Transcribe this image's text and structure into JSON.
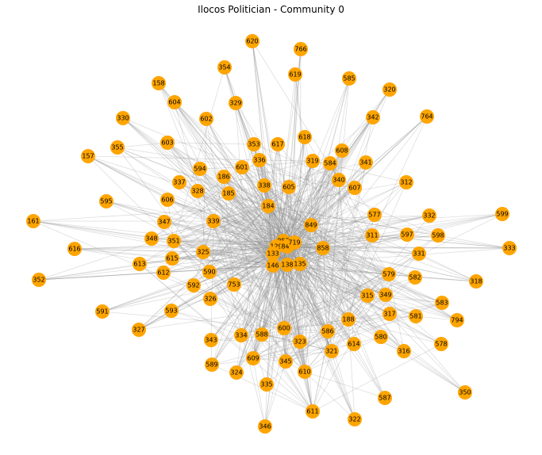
{
  "title": "Ilocos Politician - Community 0",
  "node_color": "#FFA500",
  "edge_color": "#888888",
  "nodes": [
    {
      "id": "620"
    },
    {
      "id": "766"
    },
    {
      "id": "354"
    },
    {
      "id": "619"
    },
    {
      "id": "585"
    },
    {
      "id": "158"
    },
    {
      "id": "320"
    },
    {
      "id": "604"
    },
    {
      "id": "329"
    },
    {
      "id": "330"
    },
    {
      "id": "602"
    },
    {
      "id": "342"
    },
    {
      "id": "764"
    },
    {
      "id": "618"
    },
    {
      "id": "603"
    },
    {
      "id": "353"
    },
    {
      "id": "617"
    },
    {
      "id": "608"
    },
    {
      "id": "355"
    },
    {
      "id": "157"
    },
    {
      "id": "336"
    },
    {
      "id": "319"
    },
    {
      "id": "584"
    },
    {
      "id": "341"
    },
    {
      "id": "594"
    },
    {
      "id": "601"
    },
    {
      "id": "186"
    },
    {
      "id": "340"
    },
    {
      "id": "337"
    },
    {
      "id": "338"
    },
    {
      "id": "605"
    },
    {
      "id": "607"
    },
    {
      "id": "312"
    },
    {
      "id": "328"
    },
    {
      "id": "185"
    },
    {
      "id": "595"
    },
    {
      "id": "606"
    },
    {
      "id": "184"
    },
    {
      "id": "577"
    },
    {
      "id": "332"
    },
    {
      "id": "599"
    },
    {
      "id": "161"
    },
    {
      "id": "347"
    },
    {
      "id": "339"
    },
    {
      "id": "849"
    },
    {
      "id": "311"
    },
    {
      "id": "597"
    },
    {
      "id": "598"
    },
    {
      "id": "348"
    },
    {
      "id": "351"
    },
    {
      "id": "857"
    },
    {
      "id": "129"
    },
    {
      "id": "848"
    },
    {
      "id": "719"
    },
    {
      "id": "858"
    },
    {
      "id": "333"
    },
    {
      "id": "616"
    },
    {
      "id": "325"
    },
    {
      "id": "331"
    },
    {
      "id": "615"
    },
    {
      "id": "133"
    },
    {
      "id": "613"
    },
    {
      "id": "138"
    },
    {
      "id": "135"
    },
    {
      "id": "146"
    },
    {
      "id": "612"
    },
    {
      "id": "590"
    },
    {
      "id": "352"
    },
    {
      "id": "579"
    },
    {
      "id": "582"
    },
    {
      "id": "318"
    },
    {
      "id": "753"
    },
    {
      "id": "592"
    },
    {
      "id": "315"
    },
    {
      "id": "349"
    },
    {
      "id": "326"
    },
    {
      "id": "583"
    },
    {
      "id": "591"
    },
    {
      "id": "593"
    },
    {
      "id": "317"
    },
    {
      "id": "581"
    },
    {
      "id": "794"
    },
    {
      "id": "188"
    },
    {
      "id": "327"
    },
    {
      "id": "600"
    },
    {
      "id": "586"
    },
    {
      "id": "334"
    },
    {
      "id": "588"
    },
    {
      "id": "580"
    },
    {
      "id": "343"
    },
    {
      "id": "323"
    },
    {
      "id": "614"
    },
    {
      "id": "578"
    },
    {
      "id": "321"
    },
    {
      "id": "316"
    },
    {
      "id": "609"
    },
    {
      "id": "589"
    },
    {
      "id": "345"
    },
    {
      "id": "324"
    },
    {
      "id": "610"
    },
    {
      "id": "335"
    },
    {
      "id": "350"
    },
    {
      "id": "587"
    },
    {
      "id": "611"
    },
    {
      "id": "322"
    },
    {
      "id": "346"
    }
  ]
}
